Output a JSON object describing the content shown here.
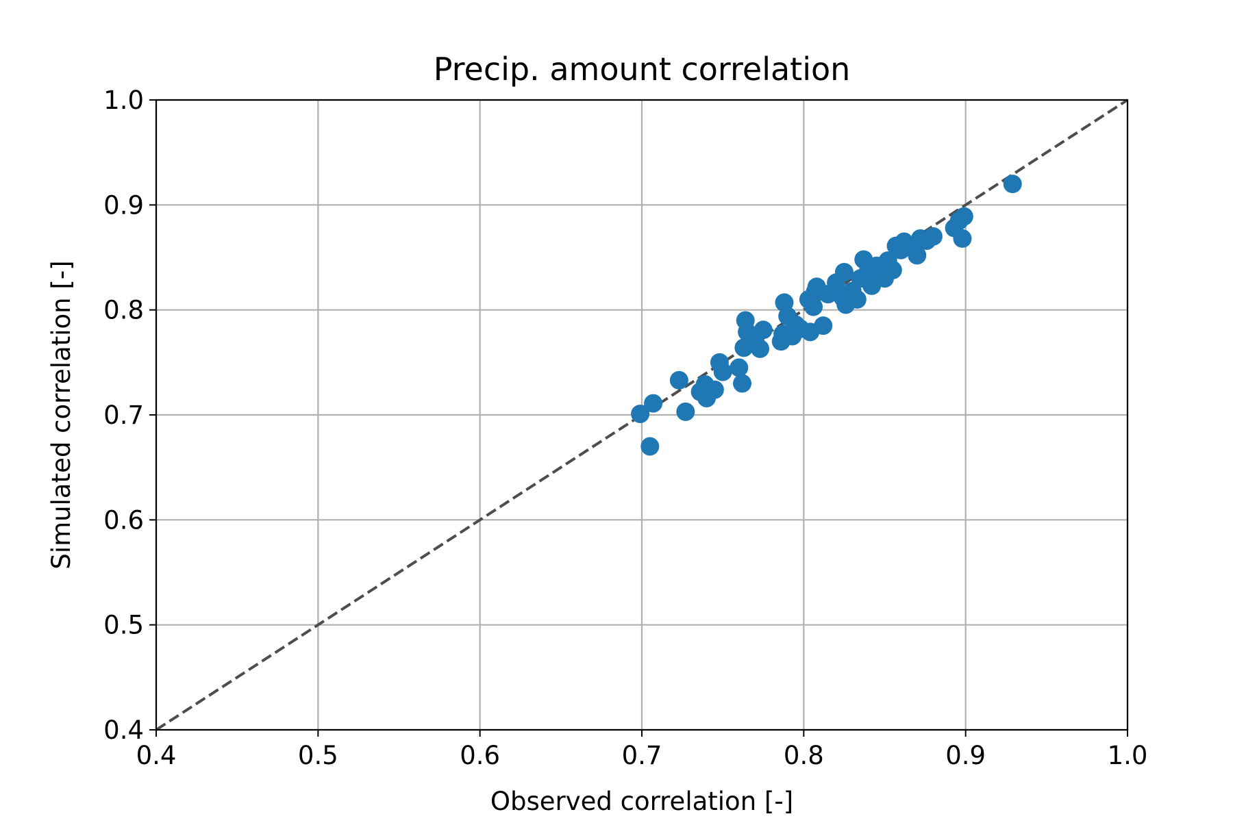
{
  "chart_data": {
    "type": "scatter",
    "title": "Precip. amount correlation",
    "xlabel": "Observed correlation [-]",
    "ylabel": "Simulated correlation [-]",
    "xlim": [
      0.4,
      1.0
    ],
    "ylim": [
      0.4,
      1.0
    ],
    "xticks": [
      "0.4",
      "0.5",
      "0.6",
      "0.7",
      "0.8",
      "0.9",
      "1.0"
    ],
    "yticks": [
      "0.4",
      "0.5",
      "0.6",
      "0.7",
      "0.8",
      "0.9",
      "1.0"
    ],
    "grid": true,
    "reference_line": {
      "style": "dashed",
      "color": "#4d4d4d",
      "from": [
        0.4,
        0.4
      ],
      "to": [
        1.0,
        1.0
      ]
    },
    "marker_color": "#1f77b4",
    "points": [
      [
        0.699,
        0.701
      ],
      [
        0.707,
        0.711
      ],
      [
        0.705,
        0.67
      ],
      [
        0.723,
        0.733
      ],
      [
        0.727,
        0.703
      ],
      [
        0.736,
        0.722
      ],
      [
        0.739,
        0.729
      ],
      [
        0.74,
        0.716
      ],
      [
        0.745,
        0.724
      ],
      [
        0.748,
        0.75
      ],
      [
        0.75,
        0.741
      ],
      [
        0.76,
        0.745
      ],
      [
        0.762,
        0.73
      ],
      [
        0.763,
        0.764
      ],
      [
        0.764,
        0.79
      ],
      [
        0.765,
        0.779
      ],
      [
        0.77,
        0.771
      ],
      [
        0.773,
        0.763
      ],
      [
        0.775,
        0.781
      ],
      [
        0.786,
        0.77
      ],
      [
        0.787,
        0.777
      ],
      [
        0.788,
        0.807
      ],
      [
        0.79,
        0.794
      ],
      [
        0.793,
        0.775
      ],
      [
        0.795,
        0.786
      ],
      [
        0.798,
        0.782
      ],
      [
        0.803,
        0.81
      ],
      [
        0.804,
        0.779
      ],
      [
        0.806,
        0.803
      ],
      [
        0.807,
        0.817
      ],
      [
        0.808,
        0.822
      ],
      [
        0.812,
        0.785
      ],
      [
        0.815,
        0.815
      ],
      [
        0.82,
        0.826
      ],
      [
        0.824,
        0.812
      ],
      [
        0.825,
        0.836
      ],
      [
        0.826,
        0.805
      ],
      [
        0.83,
        0.818
      ],
      [
        0.833,
        0.81
      ],
      [
        0.835,
        0.83
      ],
      [
        0.837,
        0.848
      ],
      [
        0.84,
        0.838
      ],
      [
        0.842,
        0.823
      ],
      [
        0.845,
        0.842
      ],
      [
        0.848,
        0.833
      ],
      [
        0.85,
        0.83
      ],
      [
        0.852,
        0.847
      ],
      [
        0.855,
        0.838
      ],
      [
        0.857,
        0.861
      ],
      [
        0.86,
        0.857
      ],
      [
        0.862,
        0.865
      ],
      [
        0.866,
        0.86
      ],
      [
        0.87,
        0.852
      ],
      [
        0.872,
        0.868
      ],
      [
        0.876,
        0.866
      ],
      [
        0.88,
        0.87
      ],
      [
        0.893,
        0.878
      ],
      [
        0.896,
        0.885
      ],
      [
        0.898,
        0.868
      ],
      [
        0.899,
        0.889
      ],
      [
        0.929,
        0.92
      ]
    ]
  }
}
